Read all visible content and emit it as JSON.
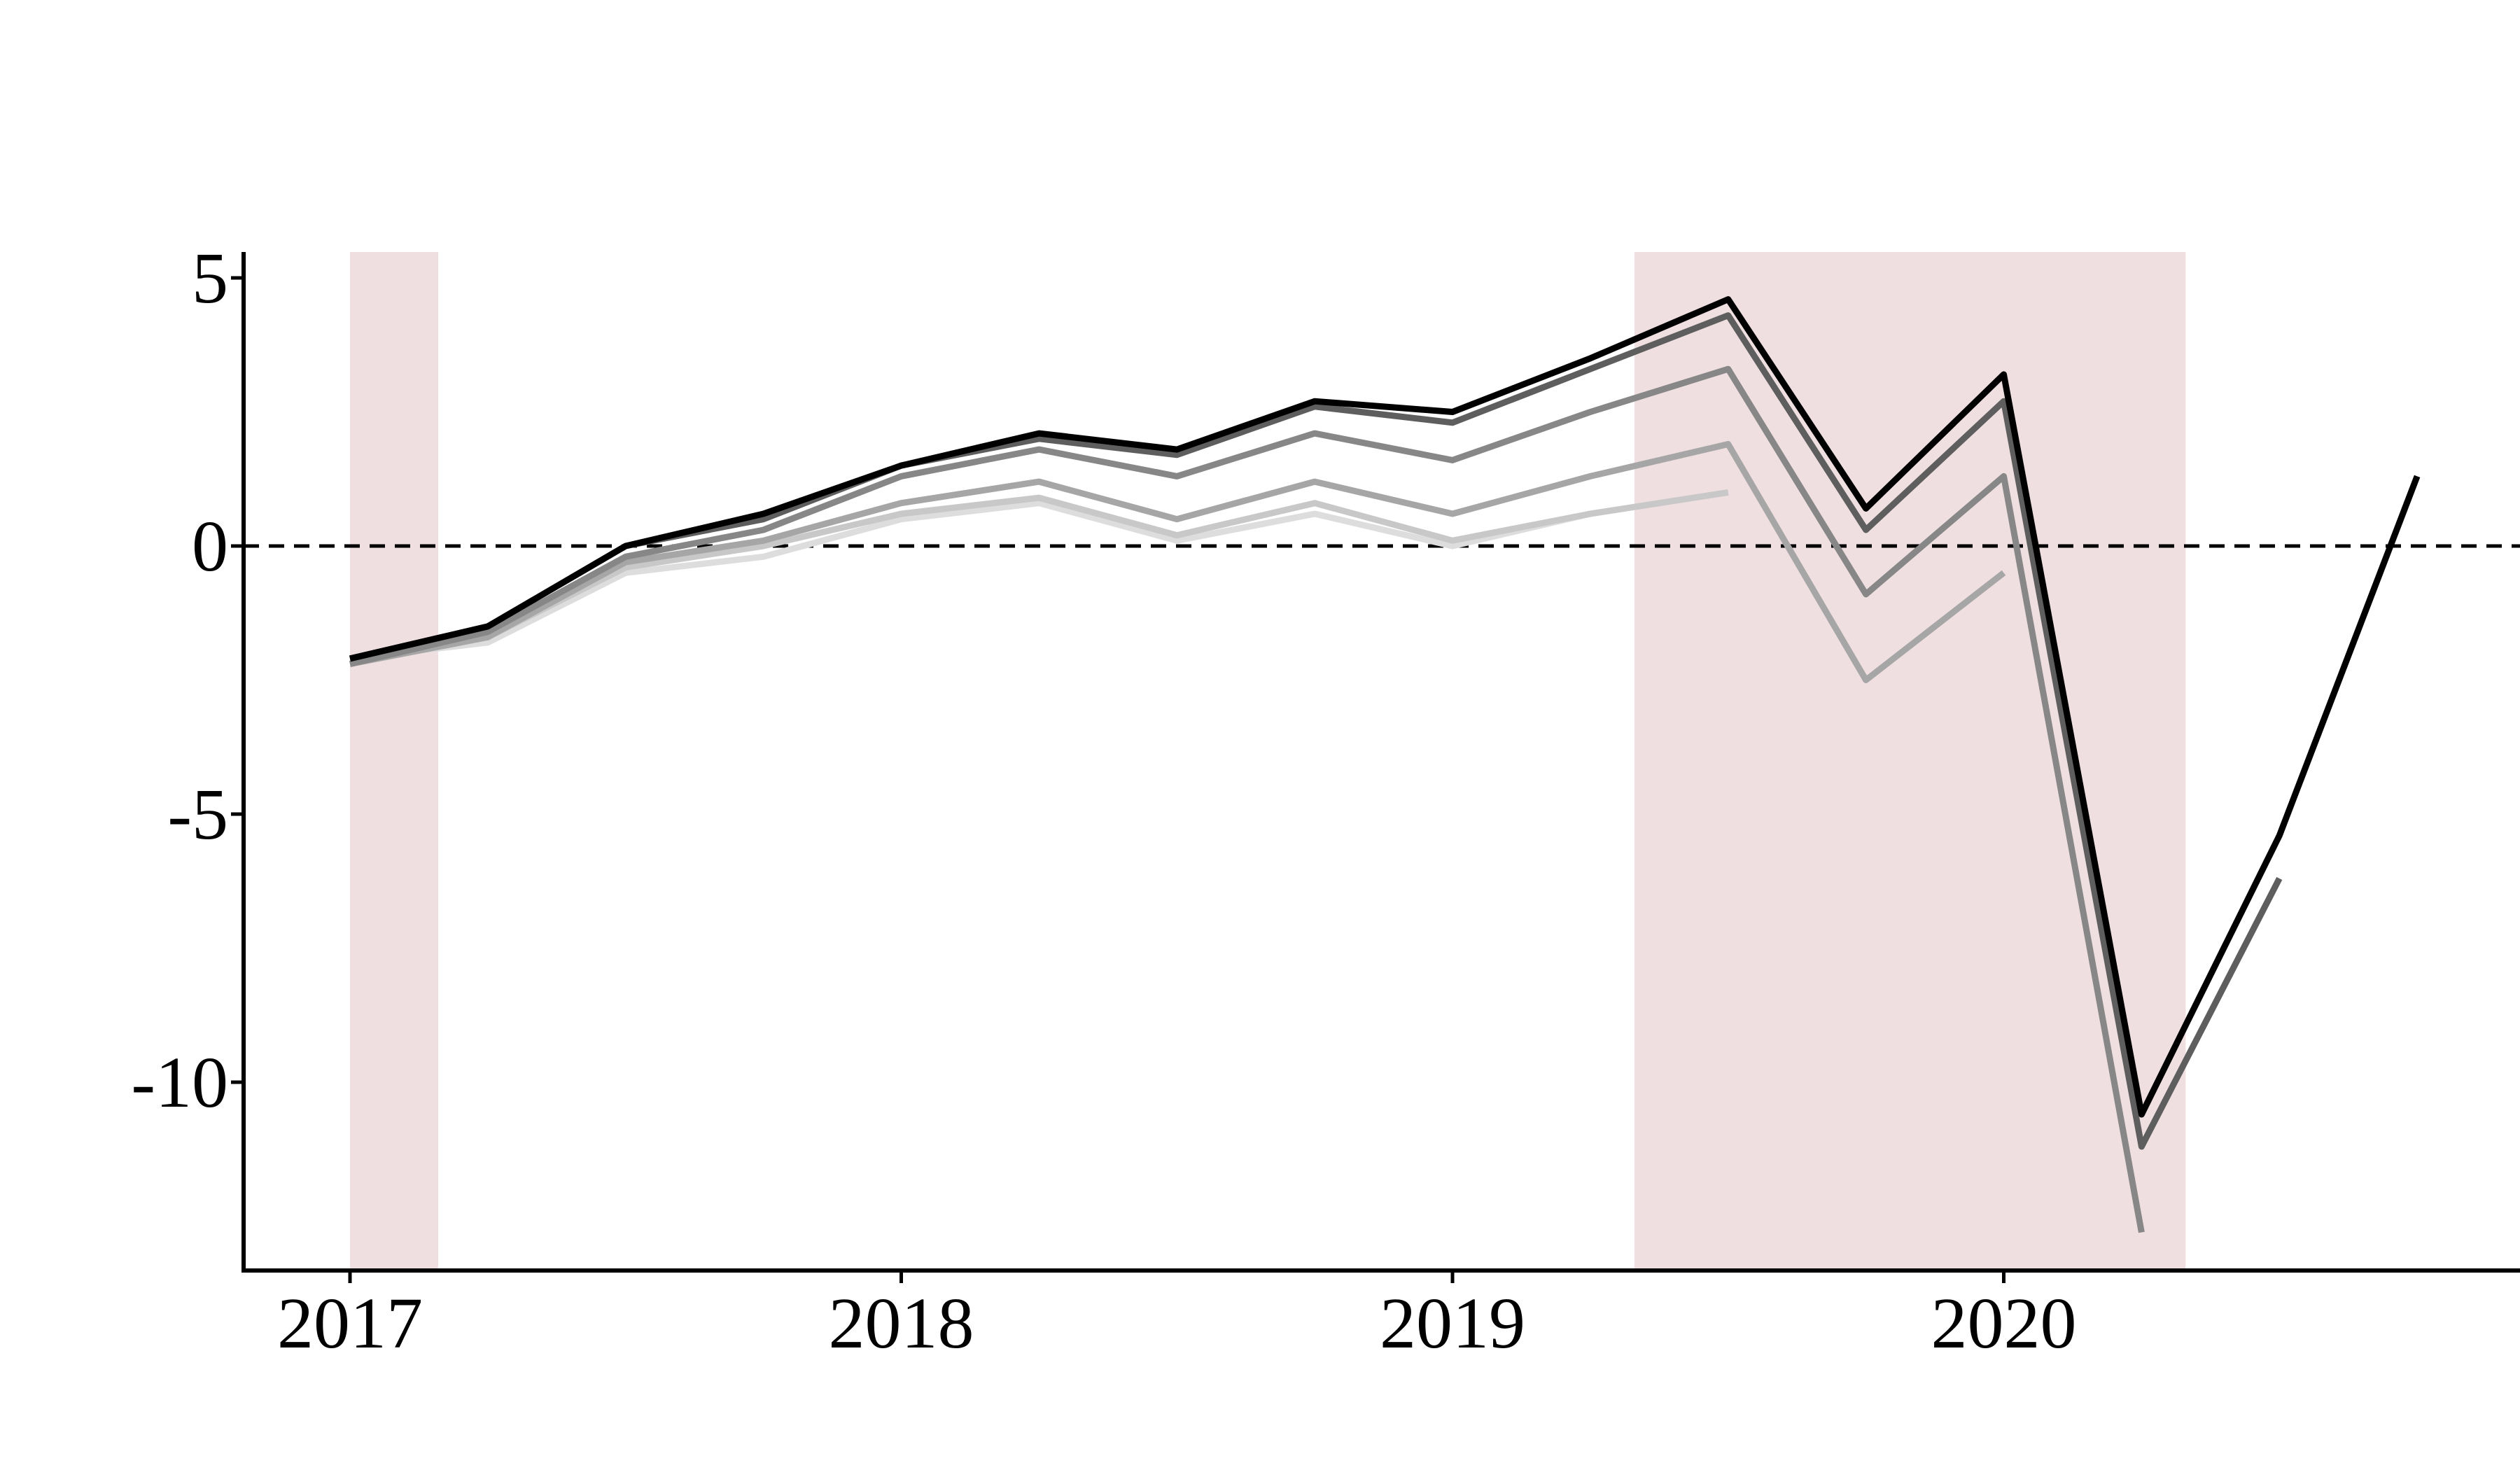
{
  "chart_data": {
    "type": "line",
    "title": "",
    "xlabel": "",
    "ylabel": "",
    "xlim": [
      2017.0,
      2021.0
    ],
    "ylim": [
      -13.5,
      5.5
    ],
    "x_ticks": [
      2017,
      2018,
      2019,
      2020
    ],
    "x_tick_labels": [
      "2017",
      "2018",
      "2019",
      "2020"
    ],
    "y_ticks": [
      5,
      0,
      -5,
      -10
    ],
    "y_tick_labels": [
      "5",
      "0",
      "-5",
      "-10"
    ],
    "zero_line": {
      "y": 0,
      "style": "dashed",
      "color": "#000000"
    },
    "shaded_periods": [
      {
        "start": 2017.0,
        "end": 2017.16,
        "color": "#f0dfe0"
      },
      {
        "start": 2019.33,
        "end": 2020.33,
        "color": "#f0dfe0"
      }
    ],
    "grid": false,
    "legend": "none",
    "series": [
      {
        "color": "#dddddd",
        "points": [
          [
            2017.0,
            -2.1
          ],
          [
            2017.25,
            -1.8
          ],
          [
            2017.5,
            -0.5
          ],
          [
            2017.75,
            -0.2
          ],
          [
            2018.0,
            0.5
          ],
          [
            2018.25,
            0.8
          ],
          [
            2018.5,
            0.1
          ],
          [
            2018.75,
            0.6
          ],
          [
            2019.0,
            0.0
          ],
          [
            2019.25,
            0.6
          ]
        ]
      },
      {
        "color": "#c8c8c8",
        "points": [
          [
            2017.0,
            -2.2
          ],
          [
            2017.25,
            -1.7
          ],
          [
            2017.5,
            -0.4
          ],
          [
            2017.75,
            0.0
          ],
          [
            2018.0,
            0.6
          ],
          [
            2018.25,
            0.9
          ],
          [
            2018.5,
            0.2
          ],
          [
            2018.75,
            0.8
          ],
          [
            2019.0,
            0.1
          ],
          [
            2019.25,
            0.6
          ],
          [
            2019.5,
            1.0
          ]
        ]
      },
      {
        "color": "#a6a6a6",
        "points": [
          [
            2017.0,
            -2.2
          ],
          [
            2017.25,
            -1.7
          ],
          [
            2017.5,
            -0.3
          ],
          [
            2017.75,
            0.1
          ],
          [
            2018.0,
            0.8
          ],
          [
            2018.25,
            1.2
          ],
          [
            2018.5,
            0.5
          ],
          [
            2018.75,
            1.2
          ],
          [
            2019.0,
            0.6
          ],
          [
            2019.25,
            1.3
          ],
          [
            2019.5,
            1.9
          ],
          [
            2019.75,
            -2.5
          ],
          [
            2020.0,
            -0.5
          ]
        ]
      },
      {
        "color": "#878787",
        "points": [
          [
            2017.0,
            -2.2
          ],
          [
            2017.25,
            -1.6
          ],
          [
            2017.5,
            -0.2
          ],
          [
            2017.75,
            0.3
          ],
          [
            2018.0,
            1.3
          ],
          [
            2018.25,
            1.8
          ],
          [
            2018.5,
            1.3
          ],
          [
            2018.75,
            2.1
          ],
          [
            2019.0,
            1.6
          ],
          [
            2019.25,
            2.5
          ],
          [
            2019.5,
            3.3
          ],
          [
            2019.75,
            -0.9
          ],
          [
            2020.0,
            1.3
          ],
          [
            2020.25,
            -12.8
          ]
        ]
      },
      {
        "color": "#5e5e5e",
        "points": [
          [
            2017.0,
            -2.1
          ],
          [
            2017.25,
            -1.5
          ],
          [
            2017.5,
            0.0
          ],
          [
            2017.75,
            0.5
          ],
          [
            2018.0,
            1.5
          ],
          [
            2018.25,
            2.0
          ],
          [
            2018.5,
            1.7
          ],
          [
            2018.75,
            2.6
          ],
          [
            2019.0,
            2.3
          ],
          [
            2019.25,
            3.3
          ],
          [
            2019.5,
            4.3
          ],
          [
            2019.75,
            0.3
          ],
          [
            2020.0,
            2.7
          ],
          [
            2020.25,
            -11.2
          ],
          [
            2020.5,
            -6.2
          ]
        ]
      },
      {
        "color": "#000000",
        "points": [
          [
            2017.0,
            -2.1
          ],
          [
            2017.25,
            -1.5
          ],
          [
            2017.5,
            0.0
          ],
          [
            2017.75,
            0.6
          ],
          [
            2018.0,
            1.5
          ],
          [
            2018.25,
            2.1
          ],
          [
            2018.5,
            1.8
          ],
          [
            2018.75,
            2.7
          ],
          [
            2019.0,
            2.5
          ],
          [
            2019.25,
            3.5
          ],
          [
            2019.5,
            4.6
          ],
          [
            2019.75,
            0.7
          ],
          [
            2020.0,
            3.2
          ],
          [
            2020.25,
            -10.6
          ],
          [
            2020.5,
            -5.4
          ],
          [
            2020.75,
            1.3
          ]
        ]
      }
    ]
  }
}
